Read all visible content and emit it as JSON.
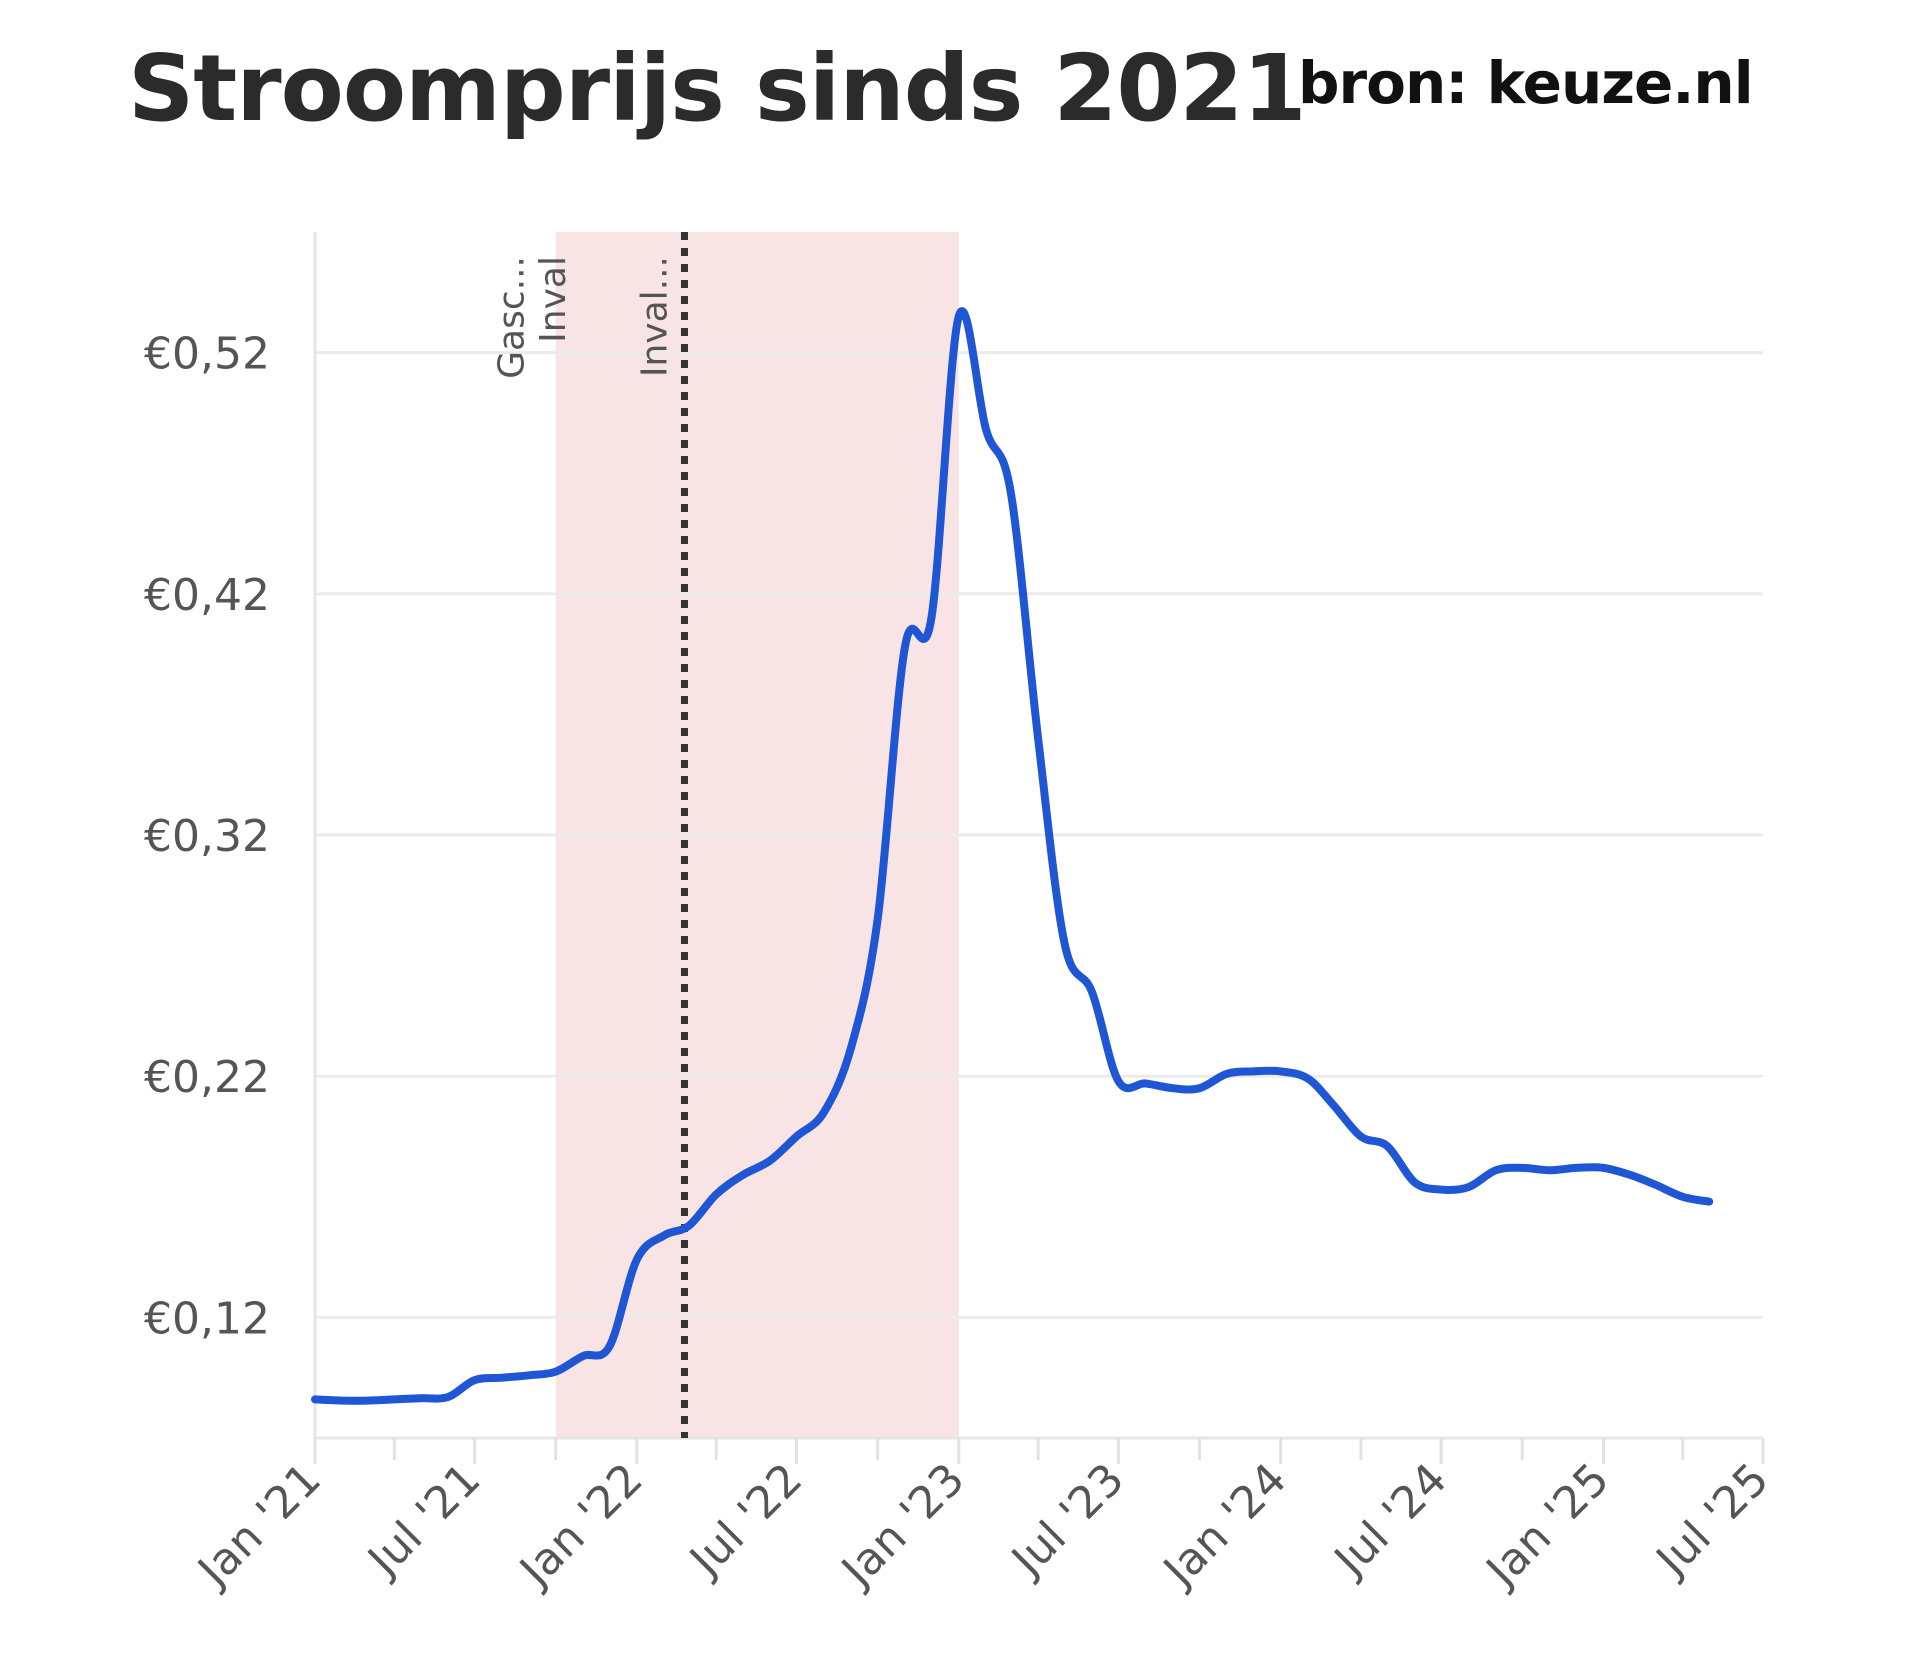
{
  "header": {
    "title": "Stroomprijs sinds 2021",
    "source": "bron: keuze.nl"
  },
  "chart_data": {
    "type": "line",
    "title": "Stroomprijs sinds 2021",
    "xlabel": "",
    "ylabel": "",
    "x_range": [
      "2021-01-01",
      "2025-07-01"
    ],
    "ylim": [
      0.07,
      0.57
    ],
    "y_ticks": [
      0.12,
      0.22,
      0.32,
      0.42,
      0.52
    ],
    "y_tick_labels": [
      "€0,12",
      "€0,22",
      "€0,32",
      "€0,42",
      "€0,52"
    ],
    "x_ticks": [
      "2021-01-01",
      "2021-07-01",
      "2022-01-01",
      "2022-07-01",
      "2023-01-01",
      "2023-07-01",
      "2024-01-01",
      "2024-07-01",
      "2025-01-01",
      "2025-07-01"
    ],
    "x_tick_labels": [
      "Jan '21",
      "Jul '21",
      "Jan '22",
      "Jul '22",
      "Jan '23",
      "Jul '23",
      "Jan '24",
      "Jul '24",
      "Jan '25",
      "Jul '25"
    ],
    "grid": true,
    "line_color": "#1f56d3",
    "shaded_region": {
      "from": "2021-10-01",
      "to": "2023-01-01",
      "color": "#f8e4e4"
    },
    "events": [
      {
        "label": "Gasc...",
        "date": "2021-09-15",
        "line": false
      },
      {
        "label": "Inval",
        "date": "2021-11-01",
        "line": false
      },
      {
        "label": "Inval...",
        "date": "2022-02-24",
        "line": true
      }
    ],
    "series": [
      {
        "points": [
          [
            "2021-01-01",
            0.086
          ],
          [
            "2021-02-01",
            0.0855
          ],
          [
            "2021-03-01",
            0.0855
          ],
          [
            "2021-04-01",
            0.086
          ],
          [
            "2021-05-01",
            0.0865
          ],
          [
            "2021-06-01",
            0.087
          ],
          [
            "2021-07-01",
            0.094
          ],
          [
            "2021-08-01",
            0.095
          ],
          [
            "2021-09-01",
            0.096
          ],
          [
            "2021-10-01",
            0.0975
          ],
          [
            "2021-11-01",
            0.104
          ],
          [
            "2021-12-01",
            0.108
          ],
          [
            "2022-01-01",
            0.144
          ],
          [
            "2022-02-01",
            0.154
          ],
          [
            "2022-03-01",
            0.158
          ],
          [
            "2022-04-01",
            0.171
          ],
          [
            "2022-05-01",
            0.179
          ],
          [
            "2022-06-01",
            0.185
          ],
          [
            "2022-07-01",
            0.195
          ],
          [
            "2022-08-01",
            0.205
          ],
          [
            "2022-09-01",
            0.232
          ],
          [
            "2022-10-01",
            0.285
          ],
          [
            "2022-11-01",
            0.398
          ],
          [
            "2022-12-01",
            0.41
          ],
          [
            "2023-01-01",
            0.535
          ],
          [
            "2023-02-01",
            0.488
          ],
          [
            "2023-03-01",
            0.462
          ],
          [
            "2023-04-01",
            0.36
          ],
          [
            "2023-05-01",
            0.275
          ],
          [
            "2023-06-01",
            0.255
          ],
          [
            "2023-07-01",
            0.218
          ],
          [
            "2023-08-01",
            0.217
          ],
          [
            "2023-09-01",
            0.215
          ],
          [
            "2023-10-01",
            0.215
          ],
          [
            "2023-11-01",
            0.221
          ],
          [
            "2023-12-01",
            0.222
          ],
          [
            "2024-01-01",
            0.222
          ],
          [
            "2024-02-01",
            0.219
          ],
          [
            "2024-03-01",
            0.208
          ],
          [
            "2024-04-01",
            0.195
          ],
          [
            "2024-05-01",
            0.191
          ],
          [
            "2024-06-01",
            0.176
          ],
          [
            "2024-07-01",
            0.173
          ],
          [
            "2024-08-01",
            0.174
          ],
          [
            "2024-09-01",
            0.181
          ],
          [
            "2024-10-01",
            0.182
          ],
          [
            "2024-11-01",
            0.181
          ],
          [
            "2024-12-01",
            0.182
          ],
          [
            "2025-01-01",
            0.182
          ],
          [
            "2025-02-01",
            0.179
          ],
          [
            "2025-03-01",
            0.175
          ],
          [
            "2025-04-01",
            0.17
          ],
          [
            "2025-05-01",
            0.168
          ]
        ]
      }
    ]
  }
}
